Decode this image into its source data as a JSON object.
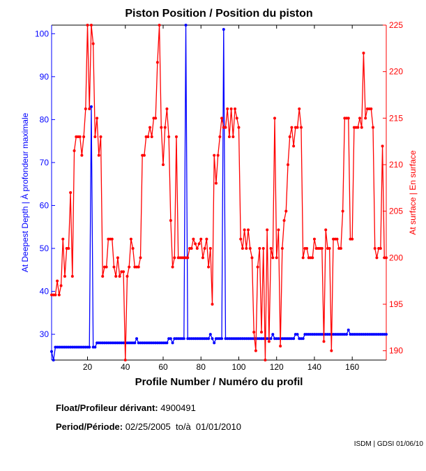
{
  "chart_data": {
    "type": "line",
    "title": "Piston Position / Position du piston",
    "xlabel": "Profile Number / Numéro du profil",
    "ylabel_left": "At Deepest Depth | À profondeur maximale",
    "ylabel_right": "At surface | En surface",
    "xlim": [
      1,
      178
    ],
    "ylim_left": [
      24,
      102
    ],
    "ylim_right": [
      189,
      225
    ],
    "x_ticks": [
      20,
      40,
      60,
      80,
      100,
      120,
      140,
      160
    ],
    "y_ticks_left": [
      30,
      40,
      50,
      60,
      70,
      80,
      90,
      100
    ],
    "y_ticks_right": [
      190,
      195,
      200,
      205,
      210,
      215,
      220,
      225
    ],
    "grid": false,
    "x_start": 1,
    "series": [
      {
        "name": "At Deepest Depth",
        "axis": "left",
        "color": "#0000ff",
        "values": [
          26,
          24,
          27,
          27,
          27,
          27,
          27,
          27,
          27,
          27,
          27,
          27,
          27,
          27,
          27,
          27,
          27,
          27,
          27,
          27,
          27,
          83,
          27,
          27,
          28,
          28,
          28,
          28,
          28,
          28,
          28,
          28,
          28,
          28,
          28,
          28,
          28,
          28,
          28,
          28,
          28,
          28,
          28,
          28,
          28,
          29,
          28,
          28,
          28,
          28,
          28,
          28,
          28,
          28,
          28,
          28,
          28,
          28,
          28,
          28,
          28,
          28,
          29,
          29,
          28,
          29,
          29,
          29,
          29,
          29,
          29,
          102,
          29,
          29,
          29,
          29,
          29,
          29,
          29,
          29,
          29,
          29,
          29,
          29,
          30,
          29,
          28,
          29,
          29,
          29,
          29,
          101,
          29,
          29,
          29,
          29,
          29,
          29,
          29,
          29,
          29,
          29,
          29,
          29,
          29,
          29,
          29,
          29,
          29,
          29,
          29,
          29,
          29,
          29,
          29,
          29,
          29,
          30,
          29,
          29,
          29,
          29,
          29,
          29,
          29,
          29,
          29,
          29,
          29,
          30,
          30,
          29,
          29,
          29,
          30,
          30,
          30,
          30,
          30,
          30,
          30,
          30,
          30,
          30,
          30,
          30,
          30,
          30,
          30,
          30,
          30,
          30,
          30,
          30,
          30,
          30,
          30,
          31,
          30,
          30,
          30,
          30,
          30,
          30,
          30,
          30,
          30,
          30,
          30,
          30,
          30,
          30,
          30,
          30,
          30,
          30,
          30,
          30
        ]
      },
      {
        "name": "At surface",
        "axis": "right",
        "color": "#ff0000",
        "values": [
          196,
          196,
          196,
          197.5,
          196,
          197,
          202,
          198,
          201,
          201,
          207,
          198,
          211.5,
          213,
          213,
          213,
          211,
          213,
          216,
          225,
          216,
          225,
          223,
          213,
          215,
          211,
          213,
          198,
          199,
          199,
          202,
          202,
          202,
          199,
          198,
          200,
          198,
          198.5,
          198.5,
          189,
          198,
          199,
          202,
          201,
          199,
          199,
          199,
          200,
          211,
          211,
          213,
          213,
          214,
          213,
          215,
          215,
          221,
          225,
          214,
          210,
          214,
          216,
          213,
          204,
          199,
          200,
          213,
          200,
          200,
          200,
          200,
          200,
          200,
          201,
          201,
          202,
          201.5,
          201,
          201.5,
          202,
          200,
          201,
          202,
          199,
          201,
          195,
          211,
          208,
          211,
          213,
          215,
          214,
          214,
          216,
          213,
          216,
          213,
          216,
          215,
          214,
          202,
          201,
          203,
          201,
          203,
          201,
          200,
          192,
          190,
          199,
          201,
          192,
          201,
          189,
          203,
          191,
          201,
          200,
          215,
          200,
          203,
          190.5,
          201,
          204,
          205,
          210,
          213,
          214,
          212,
          214,
          214,
          216,
          214,
          200,
          201,
          201,
          200,
          200,
          200,
          202,
          201,
          201,
          201,
          201,
          191,
          203,
          201,
          201,
          190,
          202,
          202,
          202,
          201,
          201,
          205,
          215,
          215,
          215,
          202,
          202,
          214,
          214,
          214,
          215,
          214,
          222,
          215,
          216,
          216,
          216,
          214,
          201,
          200,
          201,
          201,
          212,
          200,
          200
        ]
      }
    ]
  },
  "info": {
    "float_label": "Float/Profileur dérivant:",
    "float_value": "4900491",
    "period_label": "Period/Période:",
    "period_value": "02/25/2005  to/à  01/01/2010",
    "credit": "ISDM | GDSI 01/06/10"
  }
}
